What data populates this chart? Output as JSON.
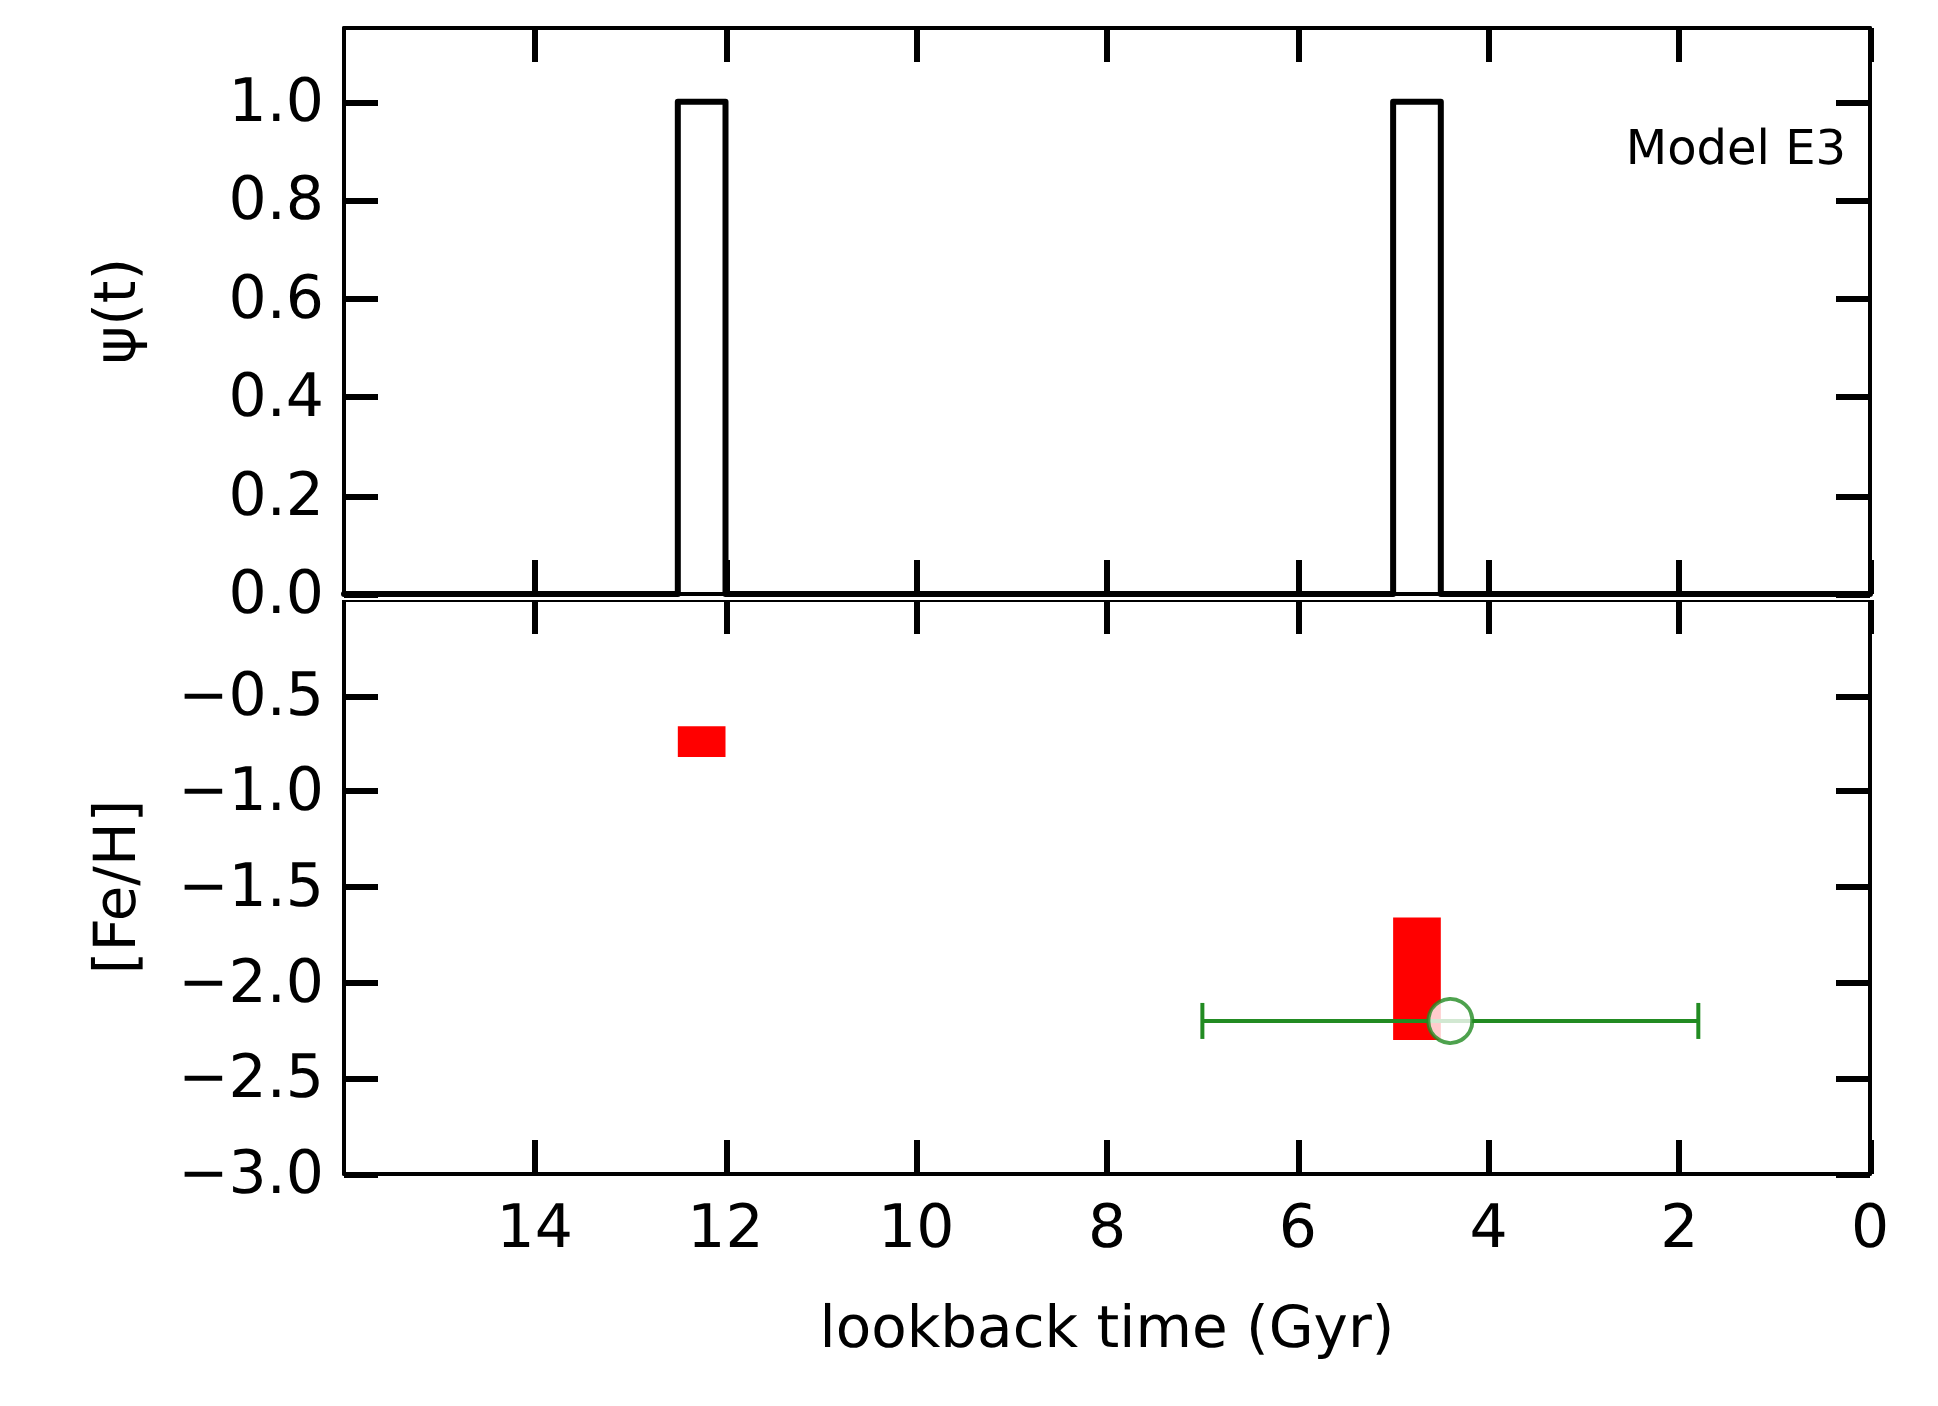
{
  "chart_data": [
    {
      "type": "line",
      "ylabel": "ψ(t)",
      "annotations": [
        "Model E3"
      ],
      "x": [
        16,
        12.5,
        12.5,
        12,
        12,
        5,
        5,
        4.5,
        4.5,
        0
      ],
      "values": [
        0,
        0,
        1,
        1,
        0,
        0,
        1,
        1,
        0,
        0
      ],
      "color": "#000000",
      "marker": "none",
      "line_style": "solid",
      "xlim": [
        16,
        0
      ],
      "ylim": [
        0,
        1.15
      ],
      "tick_labels": "y",
      "xticks": [
        14,
        12,
        10,
        8,
        6,
        4,
        2,
        0
      ],
      "yticks": [
        {
          "value": 0,
          "label": "0.0"
        },
        {
          "value": 0.2,
          "label": "0.2"
        },
        {
          "value": 0.4,
          "label": "0.4"
        },
        {
          "value": 0.6,
          "label": "0.6"
        },
        {
          "value": 0.8,
          "label": "0.8"
        },
        {
          "value": 1,
          "label": "1.0"
        }
      ]
    },
    {
      "type": "bar",
      "xlabel": "lookback time (Gyr)",
      "ylabel": "[Fe/H]",
      "series": [
        {
          "color": "#ff0000",
          "x": [
            12.25,
            4.75
          ],
          "base": [
            -0.82,
            -2.3
          ],
          "values": [
            0.16,
            0.64
          ]
        },
        {
          "type": "scatter",
          "color": "#228b22",
          "x": [
            4.4
          ],
          "values": [
            -2.2
          ],
          "xerrors": [
            [
              1.8,
              7.0
            ]
          ],
          "marker": "circle"
        }
      ],
      "xlim": [
        16,
        0
      ],
      "ylim": [
        -3,
        0
      ],
      "xticks": [
        14,
        12,
        10,
        8,
        6,
        4,
        2,
        0
      ],
      "yticks": [
        {
          "value": -3,
          "label": "−3.0"
        },
        {
          "value": -2.5,
          "label": "−2.5"
        },
        {
          "value": -2,
          "label": "−2.0"
        },
        {
          "value": -1.5,
          "label": "−1.5"
        },
        {
          "value": -1,
          "label": "−1.0"
        },
        {
          "value": -0.5,
          "label": "−0.5"
        }
      ]
    }
  ]
}
